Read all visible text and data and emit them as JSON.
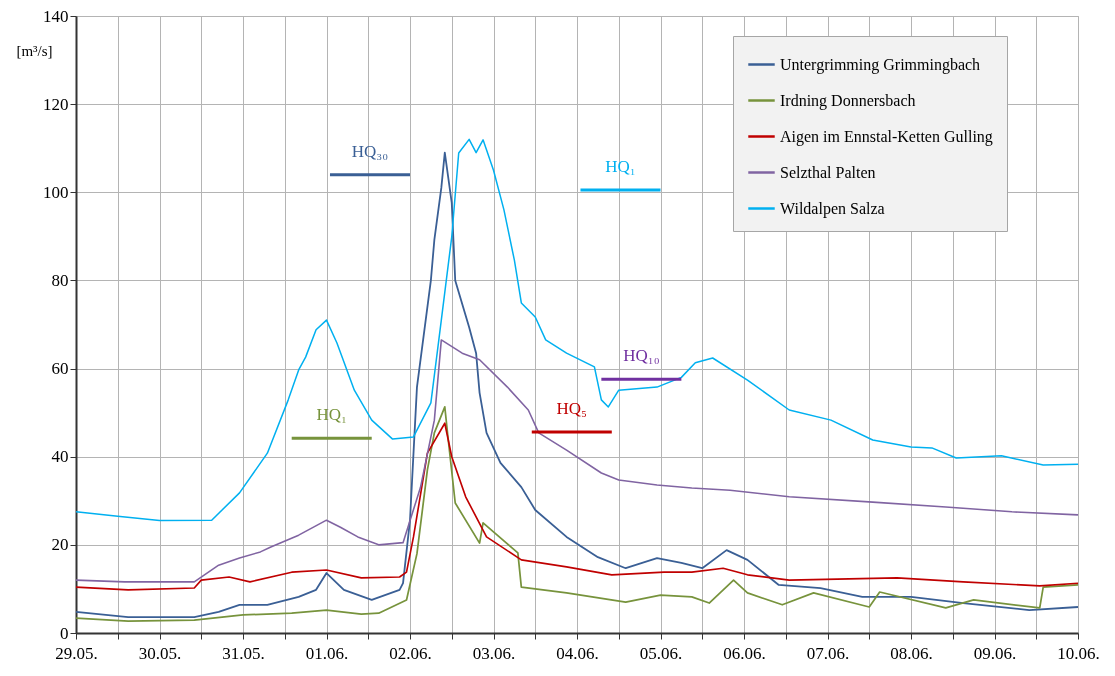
{
  "chart_data": {
    "type": "line",
    "ylabel": "[m³/s]",
    "xlim": [
      "--05-29",
      "--06-10"
    ],
    "xticks": [
      {
        "value": "--05-29",
        "label": "29.05."
      },
      {
        "value": "--05-29T12:00",
        "label": null
      },
      {
        "value": "--05-30",
        "label": "30.05."
      },
      {
        "value": "--05-30T12:00",
        "label": null
      },
      {
        "value": "--05-31",
        "label": "31.05."
      },
      {
        "value": "--05-31T12:00",
        "label": null
      },
      {
        "value": "--06-01",
        "label": "01.06."
      },
      {
        "value": "--06-01T12:00",
        "label": null
      },
      {
        "value": "--06-02",
        "label": "02.06."
      },
      {
        "value": "--06-02T12:00",
        "label": null
      },
      {
        "value": "--06-03",
        "label": "03.06."
      },
      {
        "value": "--06-03T12:00",
        "label": null
      },
      {
        "value": "--06-04",
        "label": "04.06."
      },
      {
        "value": "--06-04T12:00",
        "label": null
      },
      {
        "value": "--06-05",
        "label": "05.06."
      },
      {
        "value": "--06-05T12:00",
        "label": null
      },
      {
        "value": "--06-06",
        "label": "06.06."
      },
      {
        "value": "--06-06T12:00",
        "label": null
      },
      {
        "value": "--06-07",
        "label": "07.06."
      },
      {
        "value": "--06-07T12:00",
        "label": null
      },
      {
        "value": "--06-08",
        "label": "08.06."
      },
      {
        "value": "--06-08T12:00",
        "label": null
      },
      {
        "value": "--06-09",
        "label": "09.06."
      },
      {
        "value": "--06-09T12:00",
        "label": null
      },
      {
        "value": "--06-10",
        "label": "10.06."
      }
    ],
    "ylim": [
      0,
      140
    ],
    "yticks": [
      0,
      20,
      40,
      60,
      80,
      100,
      120,
      140
    ],
    "grid": true,
    "legend": "top right",
    "line_style": "solid",
    "marker": "none",
    "series": [
      {
        "name": "Untergrimming Grimmingbach",
        "color": "#3a5f95",
        "x": [
          "--05-29T00:00",
          "--05-29T15:00",
          "--05-30T10:00",
          "--05-30T17:00",
          "--05-30T23:00",
          "--05-31T07:00",
          "--05-31T16:00",
          "--05-31T21:00",
          "--06-01T00:00",
          "--06-01T05:00",
          "--06-01T13:00",
          "--06-01T21:00",
          "--06-01T22:00",
          "--06-02T00:00",
          "--06-02T02:00",
          "--06-02T06:00",
          "--06-02T07:00",
          "--06-02T09:00",
          "--06-02T10:00",
          "--06-02T12:00",
          "--06-02T13:00",
          "--06-02T17:00",
          "--06-02T19:00",
          "--06-02T20:00",
          "--06-02T22:00",
          "--06-03T02:00",
          "--06-03T08:00",
          "--06-03T12:00",
          "--06-03T21:00",
          "--06-04T06:00",
          "--06-04T14:00",
          "--06-04T23:00",
          "--06-05T06:00",
          "--06-05T12:00",
          "--06-05T19:00",
          "--06-06T01:00",
          "--06-06T10:00",
          "--06-06T22:00",
          "--06-07T10:00",
          "--06-08T00:00",
          "--06-08T15:00",
          "--06-09T10:00",
          "--06-10T00:00"
        ],
        "values": [
          4.8,
          3.6,
          3.6,
          4.8,
          6.4,
          6.4,
          8.2,
          9.8,
          13.6,
          9.8,
          7.5,
          9.8,
          11.3,
          25.6,
          55.8,
          80,
          89.2,
          101,
          109,
          97.6,
          80,
          69.4,
          63.5,
          54.5,
          45.4,
          38.6,
          33.1,
          27.9,
          21.8,
          17.2,
          14.7,
          17,
          15.9,
          14.7,
          18.8,
          16.6,
          10.9,
          10.2,
          8.2,
          8.2,
          6.8,
          5.2,
          5.9
        ]
      },
      {
        "name": "Irdning Donnersbach",
        "color": "#77933c",
        "x": [
          "--05-29T00:00",
          "--05-29T15:00",
          "--05-30T10:00",
          "--05-31T00:00",
          "--05-31T14:00",
          "--06-01T00:00",
          "--06-01T10:00",
          "--06-01T15:00",
          "--06-01T23:00",
          "--06-02T02:00",
          "--06-02T05:00",
          "--06-02T07:00",
          "--06-02T10:00",
          "--06-02T11:00",
          "--06-02T13:00",
          "--06-02T20:00",
          "--06-02T21:00",
          "--06-03T07:00",
          "--06-03T08:00",
          "--06-03T21:00",
          "--06-04T14:00",
          "--06-05T00:00",
          "--06-05T09:00",
          "--06-05T14:00",
          "--06-05T21:00",
          "--06-06T01:00",
          "--06-06T11:00",
          "--06-06T20:00",
          "--06-07T12:00",
          "--06-07T15:00",
          "--06-08T10:00",
          "--06-08T18:00",
          "--06-09T13:00",
          "--06-09T14:00",
          "--06-10T00:00"
        ],
        "values": [
          3.4,
          2.7,
          2.9,
          4.1,
          4.5,
          5.2,
          4.3,
          4.5,
          7.5,
          18,
          37,
          45.4,
          51.3,
          43.8,
          29.5,
          20.4,
          25,
          18.2,
          10.4,
          9.1,
          7,
          8.6,
          8.2,
          6.8,
          12,
          9.1,
          6.4,
          9.1,
          5.9,
          9.3,
          5.7,
          7.5,
          5.7,
          10.4,
          10.9
        ]
      },
      {
        "name": "Aigen im Ennstal-Ketten Gulling",
        "color": "#c00000",
        "x": [
          "--05-29T00:00",
          "--05-29T15:00",
          "--05-30T10:00",
          "--05-30T12:00",
          "--05-30T20:00",
          "--05-31T02:00",
          "--05-31T14:00",
          "--06-01T00:00",
          "--06-01T10:00",
          "--06-01T21:00",
          "--06-01T23:00",
          "--06-02T01:00",
          "--06-02T05:00",
          "--06-02T10:00",
          "--06-02T12:00",
          "--06-02T16:00",
          "--06-02T22:00",
          "--06-03T08:00",
          "--06-03T21:00",
          "--06-04T10:00",
          "--06-05T01:00",
          "--06-05T09:00",
          "--06-05T18:00",
          "--06-06T01:00",
          "--06-06T13:00",
          "--06-07T20:00",
          "--06-08T15:00",
          "--06-09T13:00",
          "--06-10T00:00"
        ],
        "values": [
          10.4,
          9.8,
          10.2,
          12,
          12.7,
          11.6,
          13.8,
          14.3,
          12.5,
          12.7,
          13.8,
          21.8,
          40.8,
          47.6,
          40,
          30.9,
          21.8,
          16.6,
          15,
          13.2,
          13.8,
          13.8,
          14.7,
          13.2,
          12,
          12.5,
          11.6,
          10.7,
          11.3
        ]
      },
      {
        "name": "Selzthal Palten",
        "color": "#8064a2",
        "x": [
          "--05-29T00:00",
          "--05-29T14:00",
          "--05-30T10:00",
          "--05-30T17:00",
          "--05-30T23:00",
          "--05-31T05:00",
          "--05-31T08:00",
          "--05-31T16:00",
          "--06-01T00:00",
          "--06-01T04:00",
          "--06-01T09:00",
          "--06-01T15:00",
          "--06-01T22:00",
          "--06-02T03:00",
          "--06-02T07:00",
          "--06-02T09:00",
          "--06-02T15:00",
          "--06-02T20:00",
          "--06-03T04:00",
          "--06-03T10:00",
          "--06-03T13:00",
          "--06-03T21:00",
          "--06-04T07:00",
          "--06-04T12:00",
          "--06-04T23:00",
          "--06-05T09:00",
          "--06-05T20:00",
          "--06-06T13:00",
          "--06-07T13:00",
          "--06-08T10:00",
          "--06-09T05:00",
          "--06-10T00:00"
        ],
        "values": [
          12,
          11.6,
          11.6,
          15.4,
          17,
          18.4,
          19.5,
          22.2,
          25.6,
          24,
          21.8,
          20,
          20.5,
          33,
          48.3,
          66.5,
          63.5,
          62,
          55.8,
          50.6,
          45.4,
          41.5,
          36.3,
          34.7,
          33.6,
          32.9,
          32.4,
          30.9,
          29.7,
          28.6,
          27.5,
          26.8
        ]
      },
      {
        "name": "Wildalpen Salza",
        "color": "#00b0f0",
        "x": [
          "--05-29T00:00",
          "--05-29T12:00",
          "--05-30T00:00",
          "--05-30T15:00",
          "--05-30T23:00",
          "--05-31T07:00",
          "--05-31T13:00",
          "--05-31T16:00",
          "--05-31T18:00",
          "--05-31T21:00",
          "--06-01T00:00",
          "--06-01T03:00",
          "--06-01T08:00",
          "--06-01T13:00",
          "--06-01T19:00",
          "--06-02T01:00",
          "--06-02T06:00",
          "--06-02T09:00",
          "--06-02T12:00",
          "--06-02T14:00",
          "--06-02T17:00",
          "--06-02T19:00",
          "--06-02T21:00",
          "--06-03T00:00",
          "--06-03T03:00",
          "--06-03T06:00",
          "--06-03T08:00",
          "--06-03T12:00",
          "--06-03T15:00",
          "--06-03T21:00",
          "--06-04T05:00",
          "--06-04T07:00",
          "--06-04T09:00",
          "--06-04T12:00",
          "--06-04T23:00",
          "--06-05T06:00",
          "--06-05T10:00",
          "--06-05T15:00",
          "--06-06T01:00",
          "--06-06T13:00",
          "--06-07T01:00",
          "--06-07T13:00",
          "--06-08T00:00",
          "--06-08T06:00",
          "--06-08T13:00",
          "--06-09T02:00",
          "--06-09T14:00",
          "--06-10T00:00"
        ],
        "values": [
          27.5,
          26.5,
          25.5,
          25.6,
          31.8,
          40.8,
          52.9,
          59.7,
          62.6,
          68.8,
          71,
          65.8,
          55.1,
          48.3,
          44,
          44.5,
          52.2,
          71,
          89.9,
          108.9,
          112,
          109,
          111.9,
          105,
          96,
          84.6,
          74.9,
          71.7,
          66.5,
          63.5,
          60.4,
          52.9,
          51.3,
          55.1,
          55.8,
          58,
          61.3,
          62.4,
          57.4,
          50.6,
          48.3,
          43.8,
          42.2,
          42,
          39.7,
          40.2,
          38.1,
          38.3
        ]
      },
      {
        "type": "line",
        "name": "HQ₃₀",
        "color": "#3a5f95",
        "x": [
          "--06-01T01:00",
          "--06-02T00:00"
        ],
        "values": [
          104,
          104
        ]
      },
      {
        "type": "line",
        "name": "HQ₁",
        "color": "#77933c",
        "x": [
          "--05-31T14:00",
          "--06-01T13:00"
        ],
        "values": [
          44.2,
          44.2
        ]
      },
      {
        "type": "line",
        "name": "HQ₅",
        "color": "#c00000",
        "x": [
          "--06-03T11:00",
          "--06-04T10:00"
        ],
        "values": [
          45.6,
          45.6
        ]
      },
      {
        "type": "line",
        "name": "HQ₁₀",
        "color": "#7030a0",
        "x": [
          "--06-04T07:00",
          "--06-05T06:00"
        ],
        "values": [
          57.6,
          57.6
        ]
      },
      {
        "type": "line",
        "name": "HQ₁",
        "color": "#00b0f0",
        "x": [
          "--06-04T01:00",
          "--06-05T00:00"
        ],
        "values": [
          100.5,
          100.5
        ]
      }
    ]
  }
}
